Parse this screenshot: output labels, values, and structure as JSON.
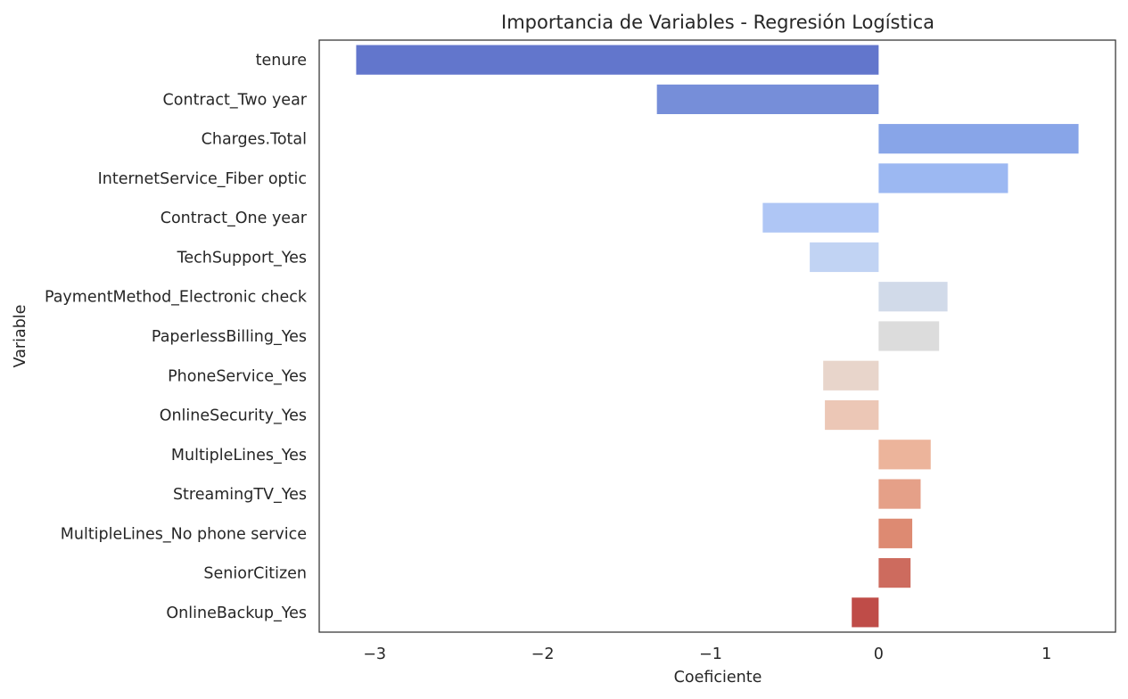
{
  "chart_data": {
    "type": "bar",
    "orientation": "horizontal",
    "title": "Importancia de Variables - Regresión Logística",
    "xlabel": "Coeficiente",
    "ylabel": "Variable",
    "xlim": [
      -3.33,
      1.41
    ],
    "xticks": [
      -3,
      -2,
      -1,
      0,
      1
    ],
    "xtick_labels": [
      "−3",
      "−2",
      "−1",
      "0",
      "1"
    ],
    "grid": false,
    "colormap": "coolwarm",
    "categories": [
      "tenure",
      "Contract_Two year",
      "Charges.Total",
      "InternetService_Fiber optic",
      "Contract_One year",
      "TechSupport_Yes",
      "PaymentMethod_Electronic check",
      "PaperlessBilling_Yes",
      "PhoneService_Yes",
      "OnlineSecurity_Yes",
      "MultipleLines_Yes",
      "StreamingTV_Yes",
      "MultipleLines_No phone service",
      "SeniorCitizen",
      "OnlineBackup_Yes"
    ],
    "values": [
      -3.11,
      -1.32,
      1.19,
      0.77,
      -0.69,
      -0.41,
      0.41,
      0.36,
      -0.33,
      -0.32,
      0.31,
      0.25,
      0.2,
      0.19,
      -0.16
    ],
    "colors": [
      "#6276cc",
      "#768ed9",
      "#88a5e8",
      "#9cb8f2",
      "#afc6f5",
      "#c1d3f3",
      "#d1dae9",
      "#dcdcdc",
      "#e8d5cb",
      "#ecc7b6",
      "#ecb49b",
      "#e5a088",
      "#dd8a72",
      "#cd6b5e",
      "#bf4c48"
    ]
  }
}
